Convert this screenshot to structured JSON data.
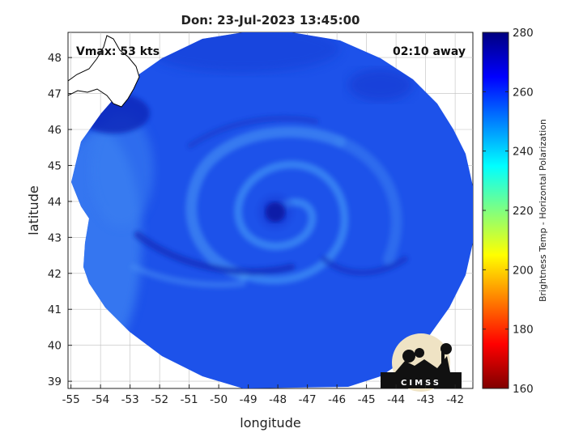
{
  "chart_data": {
    "type": "heatmap",
    "title": "Don: 23-Jul-2023 13:45:00",
    "xlabel": "longitude",
    "ylabel": "latitude",
    "xlim": [
      -55.1,
      -41.4
    ],
    "ylim": [
      38.8,
      48.7
    ],
    "x_ticks": [
      -55,
      -54,
      -53,
      -52,
      -51,
      -50,
      -49,
      -48,
      -47,
      -46,
      -45,
      -44,
      -43,
      -42
    ],
    "y_ticks": [
      39,
      40,
      41,
      42,
      43,
      44,
      45,
      46,
      47,
      48
    ],
    "grid": true,
    "annotations": {
      "vmax": "Vmax: 53 kts",
      "time_away": "02:10 away"
    },
    "storm_center": {
      "lon": -48.0,
      "lat": 43.8
    },
    "colorbar": {
      "label": "Brightness Temp - Horizontal Polarization",
      "min": 160,
      "max": 280,
      "ticks": [
        160,
        180,
        200,
        220,
        240,
        260,
        280
      ],
      "colormap": [
        "#7f0000",
        "#ff0000",
        "#ff8000",
        "#ffff00",
        "#80ff80",
        "#00ffff",
        "#0080ff",
        "#0000ff",
        "#00007f"
      ]
    },
    "logo_text": "CIMSS"
  }
}
